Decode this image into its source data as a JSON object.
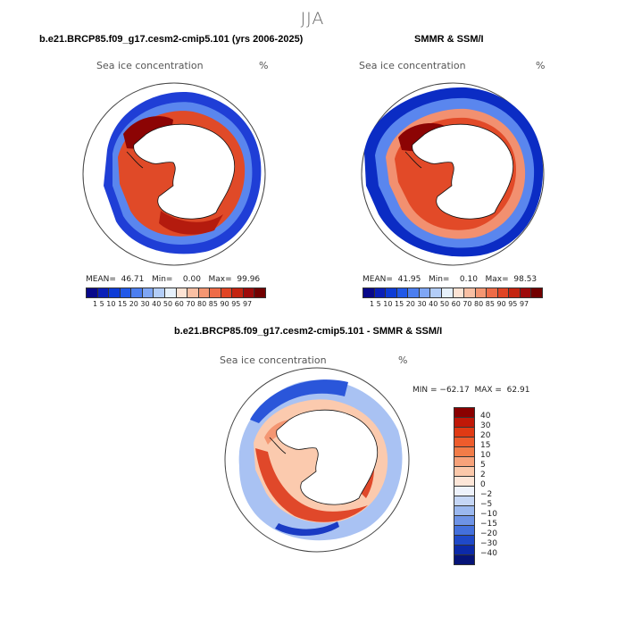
{
  "season": "JJA",
  "panel_left": {
    "title": "b.e21.BRCP85.f09_g17.cesm2-cmip5.101 (yrs 2006-2025)",
    "variable": "Sea ice concentration",
    "unit": "%",
    "stats": "MEAN=  46.71   Min=    0.00   Max=  99.96"
  },
  "panel_right": {
    "title": "SMMR & SSM/I",
    "variable": "Sea ice concentration",
    "unit": "%",
    "stats": "MEAN=  41.95   Min=    0.10   Max=  98.53"
  },
  "panel_bottom": {
    "title": "b.e21.BRCP85.f09_g17.cesm2-cmip5.101 - SMMR & SSM/I",
    "variable": "Sea ice concentration",
    "unit": "%",
    "minmax": "MIN = −62.17  MAX =  62.91"
  },
  "conc_colorbar": {
    "ticks": "1  5 10 15 20 30 40 50 60 70 80 85 90 95 97",
    "colors": [
      "#08088a",
      "#0a1fb8",
      "#0d3bd6",
      "#2158e8",
      "#4c7ef0",
      "#7fa6f5",
      "#b3cdf8",
      "#e6f0fb",
      "#fde3d4",
      "#f9bfa3",
      "#f49672",
      "#ee6b47",
      "#e04424",
      "#c42410",
      "#9e0a0a",
      "#720000"
    ]
  },
  "diff_colorbar": {
    "labels": [
      "40",
      "30",
      "20",
      "15",
      "10",
      "5",
      "2",
      "0",
      "−2",
      "−5",
      "−10",
      "−15",
      "−20",
      "−30",
      "−40"
    ],
    "colors": [
      "#8a0000",
      "#c01808",
      "#e03a14",
      "#ee5c2c",
      "#f27c48",
      "#f7a27a",
      "#fbc8aa",
      "#fde6d8",
      "#eef2fb",
      "#c5d6f5",
      "#9bb8ef",
      "#6e93e6",
      "#4470dc",
      "#1f49c8",
      "#0c2aa8",
      "#061478"
    ]
  }
}
